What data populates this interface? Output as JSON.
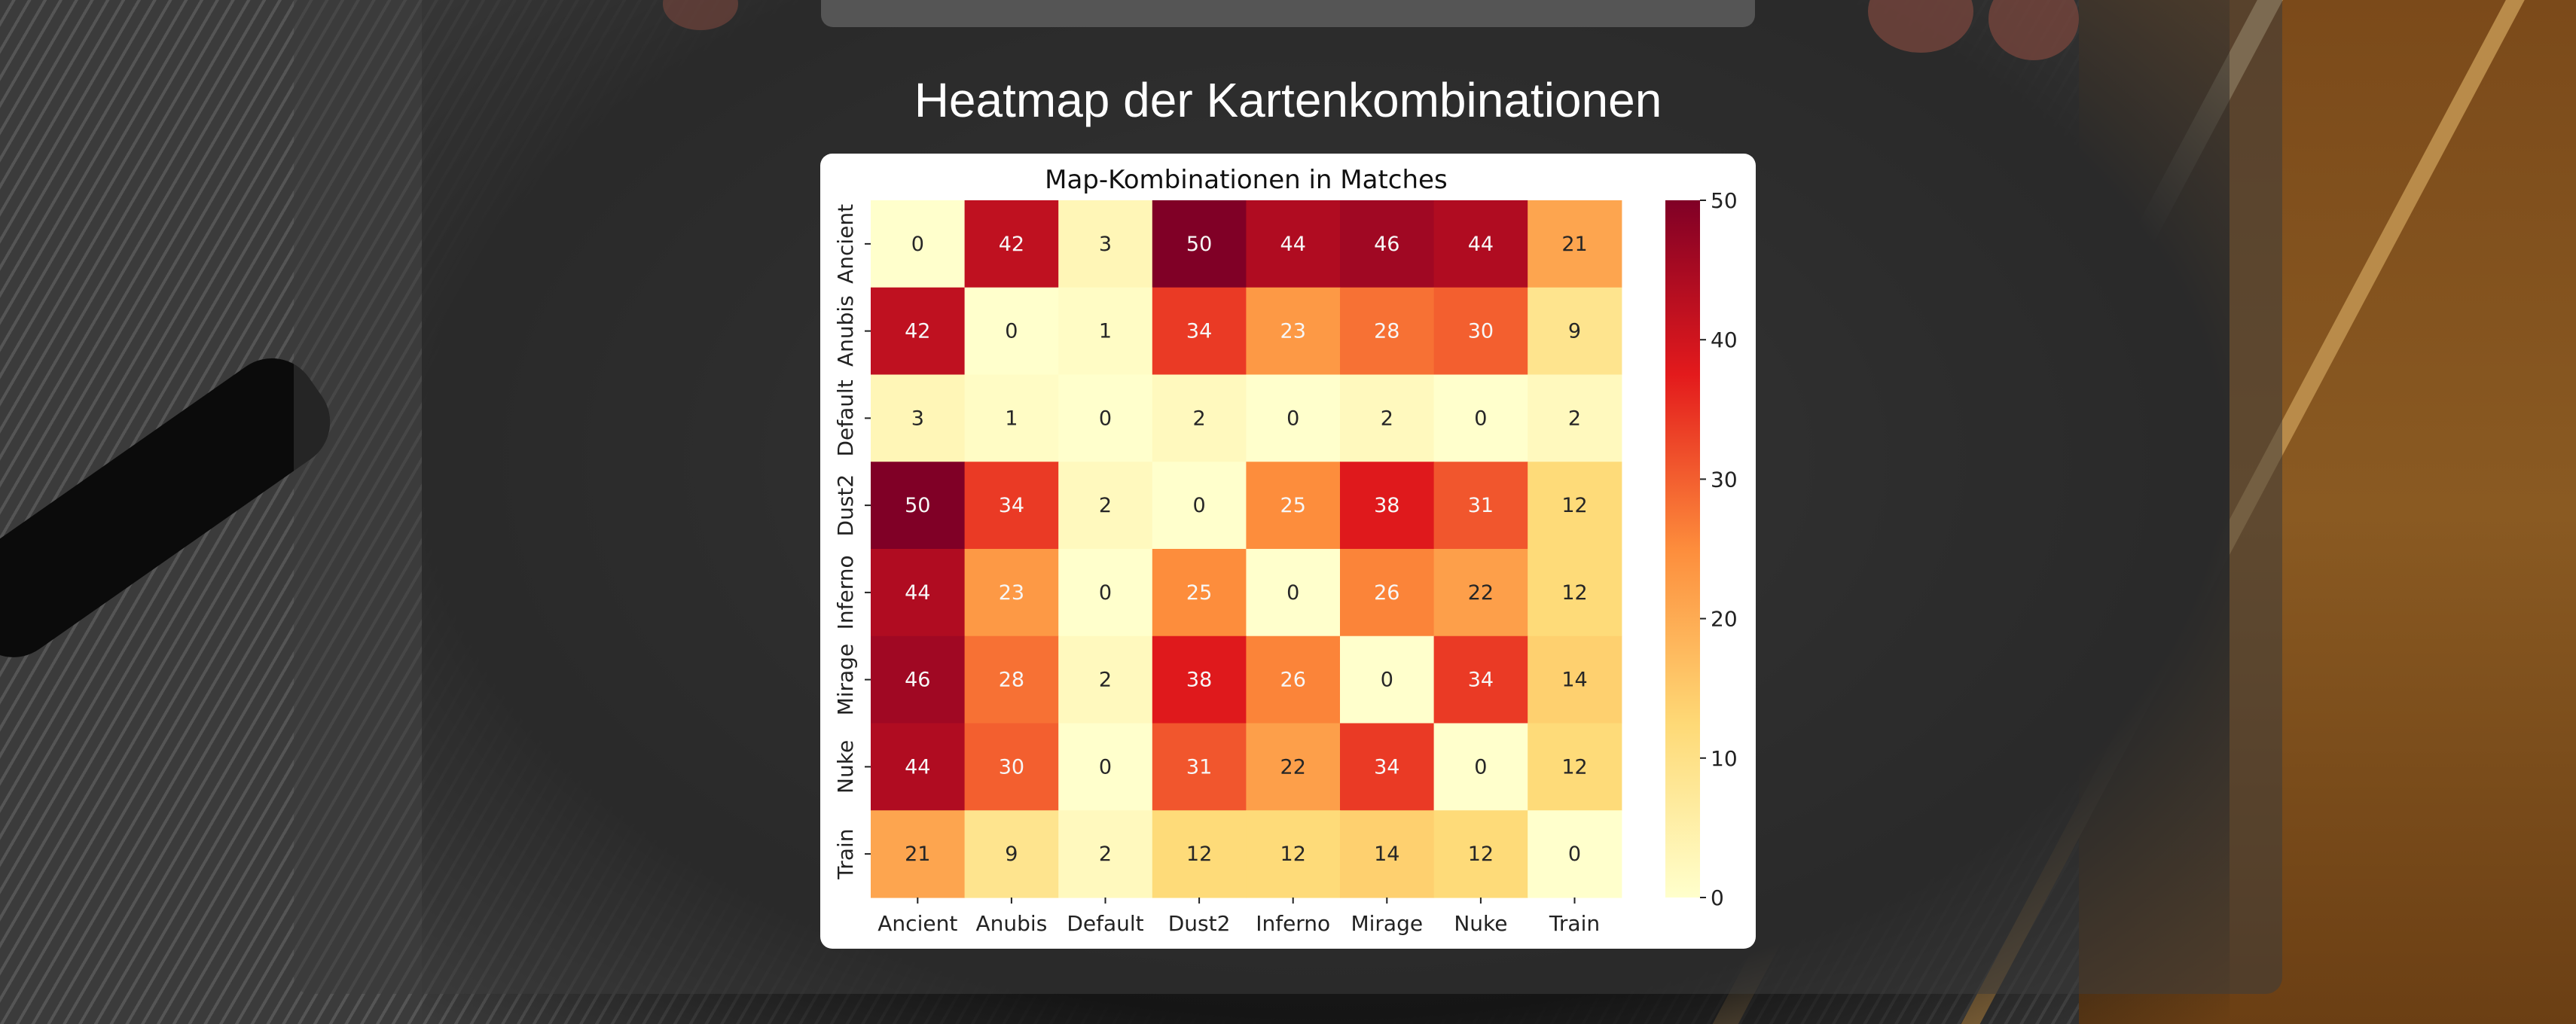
{
  "page": {
    "title": "Heatmap der Kartenkombinationen"
  },
  "colors": {
    "low": "#ffffcc",
    "mid_low": "#fed976",
    "mid": "#fd8d3c",
    "mid_high": "#e31a1c",
    "high": "#800026"
  },
  "chart_data": {
    "type": "heatmap",
    "title": "Map-Kombinationen in Matches",
    "xlabel": "",
    "ylabel": "",
    "x_categories": [
      "Ancient",
      "Anubis",
      "Default",
      "Dust2",
      "Inferno",
      "Mirage",
      "Nuke",
      "Train"
    ],
    "y_categories": [
      "Ancient",
      "Anubis",
      "Default",
      "Dust2",
      "Inferno",
      "Mirage",
      "Nuke",
      "Train"
    ],
    "values": [
      [
        0,
        42,
        3,
        50,
        44,
        46,
        44,
        21
      ],
      [
        42,
        0,
        1,
        34,
        23,
        28,
        30,
        9
      ],
      [
        3,
        1,
        0,
        2,
        0,
        2,
        0,
        2
      ],
      [
        50,
        34,
        2,
        0,
        25,
        38,
        31,
        12
      ],
      [
        44,
        23,
        0,
        25,
        0,
        26,
        22,
        12
      ],
      [
        46,
        28,
        2,
        38,
        26,
        0,
        34,
        14
      ],
      [
        44,
        30,
        0,
        31,
        22,
        34,
        0,
        12
      ],
      [
        21,
        9,
        2,
        12,
        12,
        14,
        12,
        0
      ]
    ],
    "colorbar": {
      "min": 0,
      "max": 50,
      "ticks": [
        0,
        10,
        20,
        30,
        40,
        50
      ],
      "colormap": "YlOrRd"
    }
  }
}
